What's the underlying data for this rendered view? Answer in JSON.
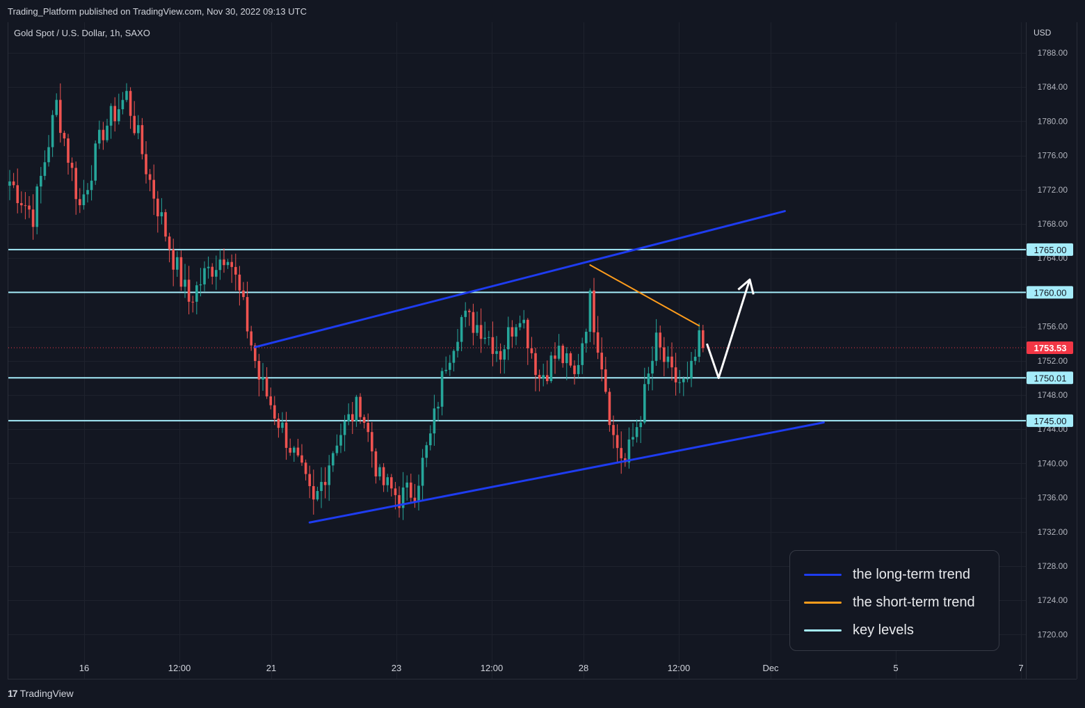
{
  "header": {
    "publish_text": "Trading_Platform published on TradingView.com, Nov 30, 2022 09:13 UTC"
  },
  "footer": {
    "logo_mark": "17",
    "logo_text": "TradingView"
  },
  "chart_data": {
    "type": "candlestick",
    "symbol_label": "Gold Spot / U.S. Dollar, 1h, SAXO",
    "currency": "USD",
    "ylim": [
      1717,
      1792
    ],
    "y_ticks": [
      "1788.00",
      "1784.00",
      "1780.00",
      "1776.00",
      "1772.00",
      "1768.00",
      "1764.00",
      "1756.00",
      "1752.00",
      "1748.00",
      "1744.00",
      "1740.00",
      "1736.00",
      "1732.00",
      "1728.00",
      "1724.00",
      "1720.00"
    ],
    "x_ticks": [
      "16",
      "12:00",
      "21",
      "23",
      "12:00",
      "28",
      "12:00",
      "Dec",
      "5",
      "7"
    ],
    "current_price": {
      "value": 1753.53,
      "label": "1753.53",
      "color": "#f23645"
    },
    "key_levels": [
      {
        "value": 1765.0,
        "label": "1765.00"
      },
      {
        "value": 1760.0,
        "label": "1760.00"
      },
      {
        "value": 1750.01,
        "label": "1750.01"
      },
      {
        "value": 1745.0,
        "label": "1745.00"
      }
    ],
    "trendlines": {
      "long_term_upper": {
        "from": {
          "bar": 63,
          "y": 1753.6
        },
        "to": {
          "bar": 199,
          "y": 1769.5
        }
      },
      "long_term_lower": {
        "from": {
          "bar": 77,
          "y": 1733.1
        },
        "to": {
          "bar": 209,
          "y": 1744.8
        }
      },
      "short_term": {
        "from": {
          "bar": 149,
          "y": 1763.2
        },
        "to": {
          "bar": 177,
          "y": 1756.1
        }
      }
    },
    "projection_path": [
      {
        "bar": 179,
        "y": 1754.0
      },
      {
        "bar": 182,
        "y": 1750.0
      },
      {
        "bar": 190,
        "y": 1761.5
      }
    ],
    "candle_anchors": [
      {
        "bar": 0,
        "y": 1773
      },
      {
        "bar": 6,
        "y": 1769
      },
      {
        "bar": 12,
        "y": 1782
      },
      {
        "bar": 18,
        "y": 1770
      },
      {
        "bar": 24,
        "y": 1779
      },
      {
        "bar": 30,
        "y": 1783
      },
      {
        "bar": 36,
        "y": 1773
      },
      {
        "bar": 42,
        "y": 1764
      },
      {
        "bar": 46,
        "y": 1759
      },
      {
        "bar": 50,
        "y": 1762
      },
      {
        "bar": 56,
        "y": 1765
      },
      {
        "bar": 60,
        "y": 1758
      },
      {
        "bar": 64,
        "y": 1750
      },
      {
        "bar": 68,
        "y": 1746
      },
      {
        "bar": 73,
        "y": 1741
      },
      {
        "bar": 78,
        "y": 1735
      },
      {
        "bar": 84,
        "y": 1743
      },
      {
        "bar": 90,
        "y": 1747
      },
      {
        "bar": 95,
        "y": 1738
      },
      {
        "bar": 100,
        "y": 1736
      },
      {
        "bar": 104,
        "y": 1737
      },
      {
        "bar": 108,
        "y": 1743
      },
      {
        "bar": 112,
        "y": 1752
      },
      {
        "bar": 116,
        "y": 1757
      },
      {
        "bar": 121,
        "y": 1756
      },
      {
        "bar": 126,
        "y": 1753
      },
      {
        "bar": 131,
        "y": 1758
      },
      {
        "bar": 136,
        "y": 1750
      },
      {
        "bar": 141,
        "y": 1753
      },
      {
        "bar": 145,
        "y": 1750
      },
      {
        "bar": 149,
        "y": 1759
      },
      {
        "bar": 152,
        "y": 1752
      },
      {
        "bar": 155,
        "y": 1743
      },
      {
        "bar": 158,
        "y": 1740
      },
      {
        "bar": 162,
        "y": 1746
      },
      {
        "bar": 166,
        "y": 1754
      },
      {
        "bar": 170,
        "y": 1750
      },
      {
        "bar": 174,
        "y": 1749
      },
      {
        "bar": 177,
        "y": 1754
      },
      {
        "bar": 178,
        "y": 1753.5
      }
    ],
    "colors": {
      "up": "#26a69a",
      "down": "#ef5350",
      "long_term_trend": "#1e3cf0",
      "short_term_trend": "#ff9d1c",
      "key_level": "#a5ecfa",
      "projection": "#ffffff"
    },
    "legend": [
      {
        "label": "the long-term trend",
        "color": "#1e3cf0"
      },
      {
        "label": "the short-term trend",
        "color": "#ff9d1c"
      },
      {
        "label": "key levels",
        "color": "#a5ecfa"
      }
    ]
  }
}
